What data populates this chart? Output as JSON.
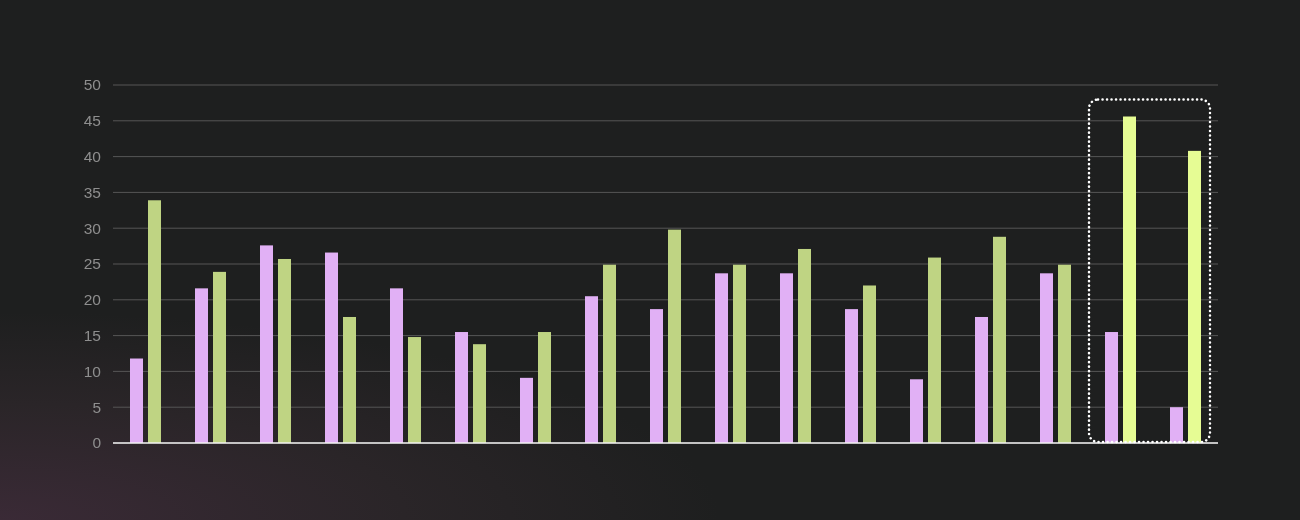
{
  "chart_data": {
    "type": "bar",
    "categories": [
      null,
      null,
      null,
      null,
      null,
      null,
      null,
      null,
      null,
      null,
      null,
      null,
      null,
      null,
      null,
      null,
      null
    ],
    "series": [
      {
        "color": "#e1b0f5",
        "values": [
          11.8,
          21.6,
          27.6,
          26.6,
          21.6,
          15.5,
          9.1,
          20.5,
          18.7,
          23.7,
          23.7,
          18.7,
          8.9,
          17.6,
          23.7,
          15.5,
          5.0
        ]
      },
      {
        "color": "#bfd483",
        "colors": [
          "#bfd483",
          "#bfd483",
          "#bfd483",
          "#bfd483",
          "#bfd483",
          "#bfd483",
          "#bfd483",
          "#bfd483",
          "#bfd483",
          "#bfd483",
          "#bfd483",
          "#bfd483",
          "#bfd483",
          "#bfd483",
          "#bfd483",
          "#e6fc94",
          "#e6fc94"
        ],
        "values": [
          33.9,
          23.9,
          25.7,
          17.6,
          14.8,
          13.8,
          15.5,
          24.9,
          29.8,
          24.9,
          27.1,
          22.0,
          25.9,
          28.8,
          24.9,
          45.6,
          40.8
        ]
      }
    ],
    "ylim": [
      0,
      50
    ],
    "yticks": [
      0,
      5,
      10,
      15,
      20,
      25,
      30,
      35,
      40,
      45,
      50
    ],
    "grid": "y",
    "tick_labels": "y"
  }
}
